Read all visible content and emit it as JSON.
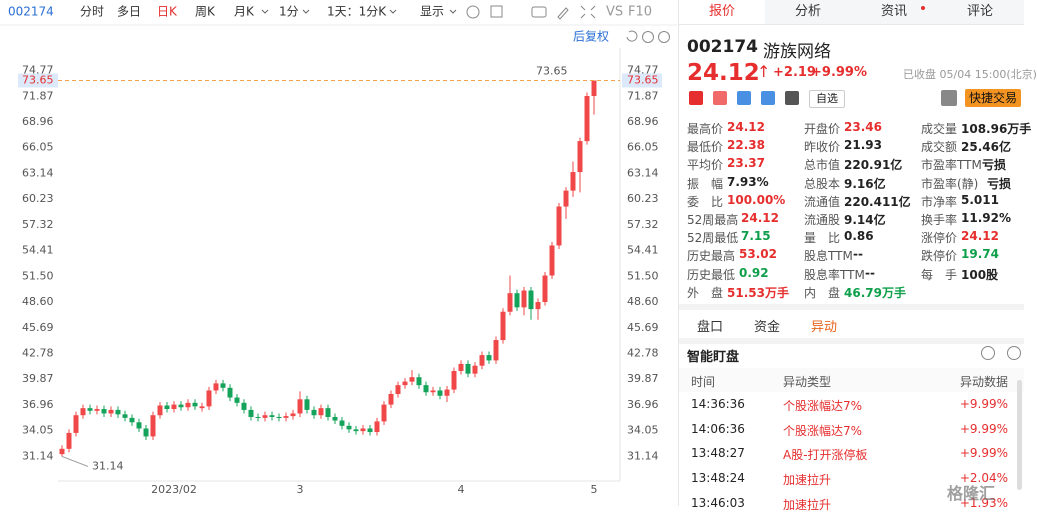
{
  "toolbar": {
    "code": "002174",
    "periods": [
      "分时",
      "多日",
      "日K",
      "周K",
      "月K",
      "1分"
    ],
    "range": "1天：1分K",
    "display": "显示",
    "compare": "VS",
    "f10": "F10",
    "adjust": "后复权"
  },
  "chart_data": {
    "type": "candlestick",
    "categories": [
      null,
      null,
      null,
      null,
      null,
      null,
      null,
      null,
      null,
      null,
      null,
      null,
      null,
      null,
      null,
      null,
      "2023/02",
      null,
      null,
      null,
      null,
      null,
      null,
      null,
      null,
      null,
      null,
      null,
      null,
      null,
      null,
      null,
      null,
      null,
      "3",
      null,
      null,
      null,
      null,
      null,
      null,
      null,
      null,
      null,
      null,
      null,
      null,
      null,
      null,
      null,
      null,
      null,
      null,
      null,
      null,
      null,
      null,
      "4",
      null,
      null,
      null,
      null,
      null,
      null,
      null,
      null,
      null,
      null,
      null,
      null,
      null,
      null,
      null,
      null,
      null,
      null,
      "5"
    ],
    "open": [
      31.4,
      32.0,
      33.8,
      35.8,
      36.6,
      36.3,
      36.5,
      36.0,
      36.4,
      35.9,
      35.5,
      35.0,
      34.3,
      33.4,
      35.8,
      36.9,
      36.5,
      37.0,
      36.7,
      37.2,
      36.6,
      36.8,
      38.6,
      39.4,
      38.9,
      37.8,
      37.2,
      36.4,
      35.6,
      35.5,
      35.8,
      35.6,
      35.5,
      35.7,
      36.0,
      37.6,
      36.4,
      35.8,
      36.6,
      35.6,
      35.2,
      34.6,
      34.2,
      34.0,
      34.3,
      33.9,
      35.1,
      37.0,
      38.2,
      39.2,
      39.6,
      40.1,
      39.2,
      38.4,
      38.6,
      38.0,
      38.7,
      40.8,
      41.6,
      40.5,
      41.4,
      42.6,
      42.0,
      44.3,
      47.5,
      49.6,
      48.0,
      49.9,
      47.8,
      48.6,
      51.6,
      55.0,
      59.4,
      61.2,
      63.3,
      66.8,
      71.9
    ],
    "high": [
      32.4,
      34.2,
      36.2,
      37.0,
      37.0,
      36.9,
      36.9,
      36.8,
      36.8,
      36.3,
      35.9,
      35.4,
      34.7,
      36.2,
      37.3,
      37.3,
      37.4,
      37.4,
      37.6,
      37.6,
      37.2,
      39.0,
      39.8,
      39.8,
      39.3,
      38.2,
      37.6,
      36.8,
      36.0,
      36.2,
      36.2,
      36.0,
      36.1,
      36.4,
      38.5,
      38.0,
      36.8,
      37.0,
      37.0,
      36.0,
      35.6,
      35.0,
      34.6,
      34.7,
      34.7,
      35.5,
      37.4,
      38.6,
      39.6,
      40.0,
      40.9,
      40.5,
      39.6,
      39.0,
      39.0,
      39.1,
      41.2,
      42.0,
      42.0,
      41.8,
      43.0,
      43.0,
      44.7,
      47.9,
      51.6,
      50.0,
      50.3,
      50.3,
      49.0,
      52.0,
      55.4,
      59.8,
      61.6,
      64.5,
      67.2,
      72.3,
      73.65
    ],
    "low": [
      31.14,
      31.6,
      33.4,
      35.4,
      35.9,
      35.9,
      35.6,
      35.6,
      35.5,
      35.1,
      34.6,
      33.9,
      33.0,
      33.0,
      35.4,
      36.1,
      36.1,
      36.3,
      36.3,
      36.4,
      36.2,
      36.4,
      38.2,
      38.5,
      37.4,
      36.8,
      36.0,
      35.2,
      35.1,
      35.1,
      35.2,
      35.1,
      35.1,
      35.3,
      35.6,
      36.0,
      35.4,
      35.4,
      35.2,
      34.8,
      34.2,
      33.8,
      33.6,
      33.6,
      33.5,
      33.5,
      34.7,
      36.6,
      37.8,
      38.8,
      39.2,
      38.8,
      38.0,
      38.0,
      37.6,
      37.3,
      38.3,
      40.4,
      40.1,
      40.1,
      41.0,
      41.6,
      41.6,
      43.9,
      47.1,
      47.6,
      47.1,
      46.6,
      46.6,
      48.2,
      51.2,
      54.6,
      58.0,
      60.5,
      61.0,
      66.4,
      69.8
    ],
    "close": [
      32.0,
      33.8,
      35.8,
      36.6,
      36.3,
      36.5,
      36.0,
      36.4,
      35.9,
      35.5,
      35.0,
      34.3,
      33.4,
      35.8,
      36.9,
      36.5,
      37.0,
      36.7,
      37.2,
      36.8,
      36.8,
      38.6,
      39.4,
      38.9,
      37.8,
      37.2,
      36.4,
      35.6,
      35.5,
      35.8,
      35.6,
      35.5,
      35.7,
      36.0,
      37.6,
      36.4,
      35.8,
      36.6,
      35.6,
      35.2,
      34.6,
      34.2,
      34.0,
      34.3,
      33.9,
      35.1,
      37.0,
      38.2,
      39.2,
      39.6,
      40.1,
      39.2,
      38.4,
      38.6,
      38.0,
      38.7,
      40.8,
      41.6,
      40.5,
      41.4,
      42.6,
      42.0,
      44.3,
      47.5,
      49.6,
      48.0,
      49.9,
      47.8,
      48.6,
      51.6,
      55.0,
      59.4,
      61.2,
      63.3,
      66.8,
      71.9,
      73.65
    ],
    "up_color": "#f04848",
    "down_color": "#14a35a",
    "ylim": [
      28.36,
      77.33
    ],
    "yticks": [
      74.77,
      71.87,
      68.96,
      66.05,
      63.14,
      60.23,
      57.32,
      54.41,
      {
        "value": 51.5,
        "label": "51.50"
      },
      {
        "value": 48.6,
        "label": "48.60"
      },
      45.69,
      42.78,
      39.87,
      36.96,
      34.05,
      31.14
    ],
    "price_line": 73.65,
    "price_line_color": "#f5a24b",
    "high_marker": 73.65,
    "low_marker": 31.14
  },
  "panel": {
    "tabs": [
      "报价",
      "分析",
      "资讯",
      "评论"
    ],
    "code": "002174",
    "name": "游族网络",
    "price": "24.12",
    "change": "+2.19",
    "change_pct": "+9.99%",
    "status": "已收盘 05/04 15:00(北京)",
    "watch": "自选",
    "trade": "快捷交易",
    "stats": [
      [
        {
          "label": "最高价",
          "value": "24.12",
          "color": "#e62e2e"
        },
        {
          "label": "开盘价",
          "value": "23.46",
          "color": "#e62e2e"
        },
        {
          "label": "成交量",
          "value": "108.96万手",
          "color": "#222222"
        }
      ],
      [
        {
          "label": "最低价",
          "value": "22.38",
          "color": "#e62e2e"
        },
        {
          "label": "昨收价",
          "value": "21.93",
          "color": "#222222"
        },
        {
          "label": "成交额",
          "value": "25.46亿",
          "color": "#222222"
        }
      ],
      [
        {
          "label": "平均价",
          "value": "23.37",
          "color": "#e62e2e"
        },
        {
          "label": "总市值",
          "value": "220.91亿",
          "color": "#222222"
        },
        {
          "label": "市盈率TTM",
          "value": "亏损",
          "color": "#222222"
        }
      ],
      [
        {
          "label": "振　幅",
          "value": "7.93%",
          "color": "#222222"
        },
        {
          "label": "总股本",
          "value": "9.16亿",
          "color": "#222222"
        },
        {
          "label": "市盈率(静)",
          "value": "亏损",
          "color": "#222222"
        }
      ],
      [
        {
          "label": "委　比",
          "value": "100.00%",
          "color": "#e62e2e"
        },
        {
          "label": "流通值",
          "value": "220.411亿",
          "color": "#222222"
        },
        {
          "label": "市净率",
          "value": "5.011",
          "color": "#222222"
        }
      ],
      [
        {
          "label": "52周最高",
          "value": "24.12",
          "color": "#e62e2e"
        },
        {
          "label": "流通股",
          "value": "9.14亿",
          "color": "#222222"
        },
        {
          "label": "换手率",
          "value": "11.92%",
          "color": "#222222"
        }
      ],
      [
        {
          "label": "52周最低",
          "value": "7.15",
          "color": "#0e9f4a"
        },
        {
          "label": "量　比",
          "value": "0.86",
          "color": "#222222"
        },
        {
          "label": "涨停价",
          "value": "24.12",
          "color": "#e62e2e"
        }
      ],
      [
        {
          "label": "历史最高",
          "value": "53.02",
          "color": "#e62e2e"
        },
        {
          "label": "股息TTM",
          "value": "--",
          "color": "#222222"
        },
        {
          "label": "跌停价",
          "value": "19.74",
          "color": "#0e9f4a"
        }
      ],
      [
        {
          "label": "历史最低",
          "value": "0.92",
          "color": "#0e9f4a"
        },
        {
          "label": "股息率TTM",
          "value": "--",
          "color": "#222222"
        },
        {
          "label": "每　手",
          "value": "100股",
          "color": "#222222"
        }
      ],
      [
        {
          "label": "外　盘",
          "value": "51.53万手",
          "color": "#e62e2e"
        },
        {
          "label": "内　盘",
          "value": "46.79万手",
          "color": "#0e9f4a"
        }
      ]
    ],
    "subtabs": [
      "盘口",
      "资金",
      "异动"
    ],
    "monitor_title": "智能盯盘",
    "monitor_header": [
      "时间",
      "异动类型",
      "异动数据"
    ],
    "monitor_rows": [
      [
        "14:36:36",
        "个股涨幅达7%",
        "+9.99%"
      ],
      [
        "14:06:36",
        "个股涨幅达7%",
        "+9.99%"
      ],
      [
        "13:48:27",
        "A股-打开涨停板",
        "+9.99%"
      ],
      [
        "13:48:24",
        "加速拉升",
        "+2.04%"
      ],
      [
        "13:46:03",
        "加速拉升",
        "+1.93%"
      ]
    ]
  },
  "watermark": "格隆汇"
}
